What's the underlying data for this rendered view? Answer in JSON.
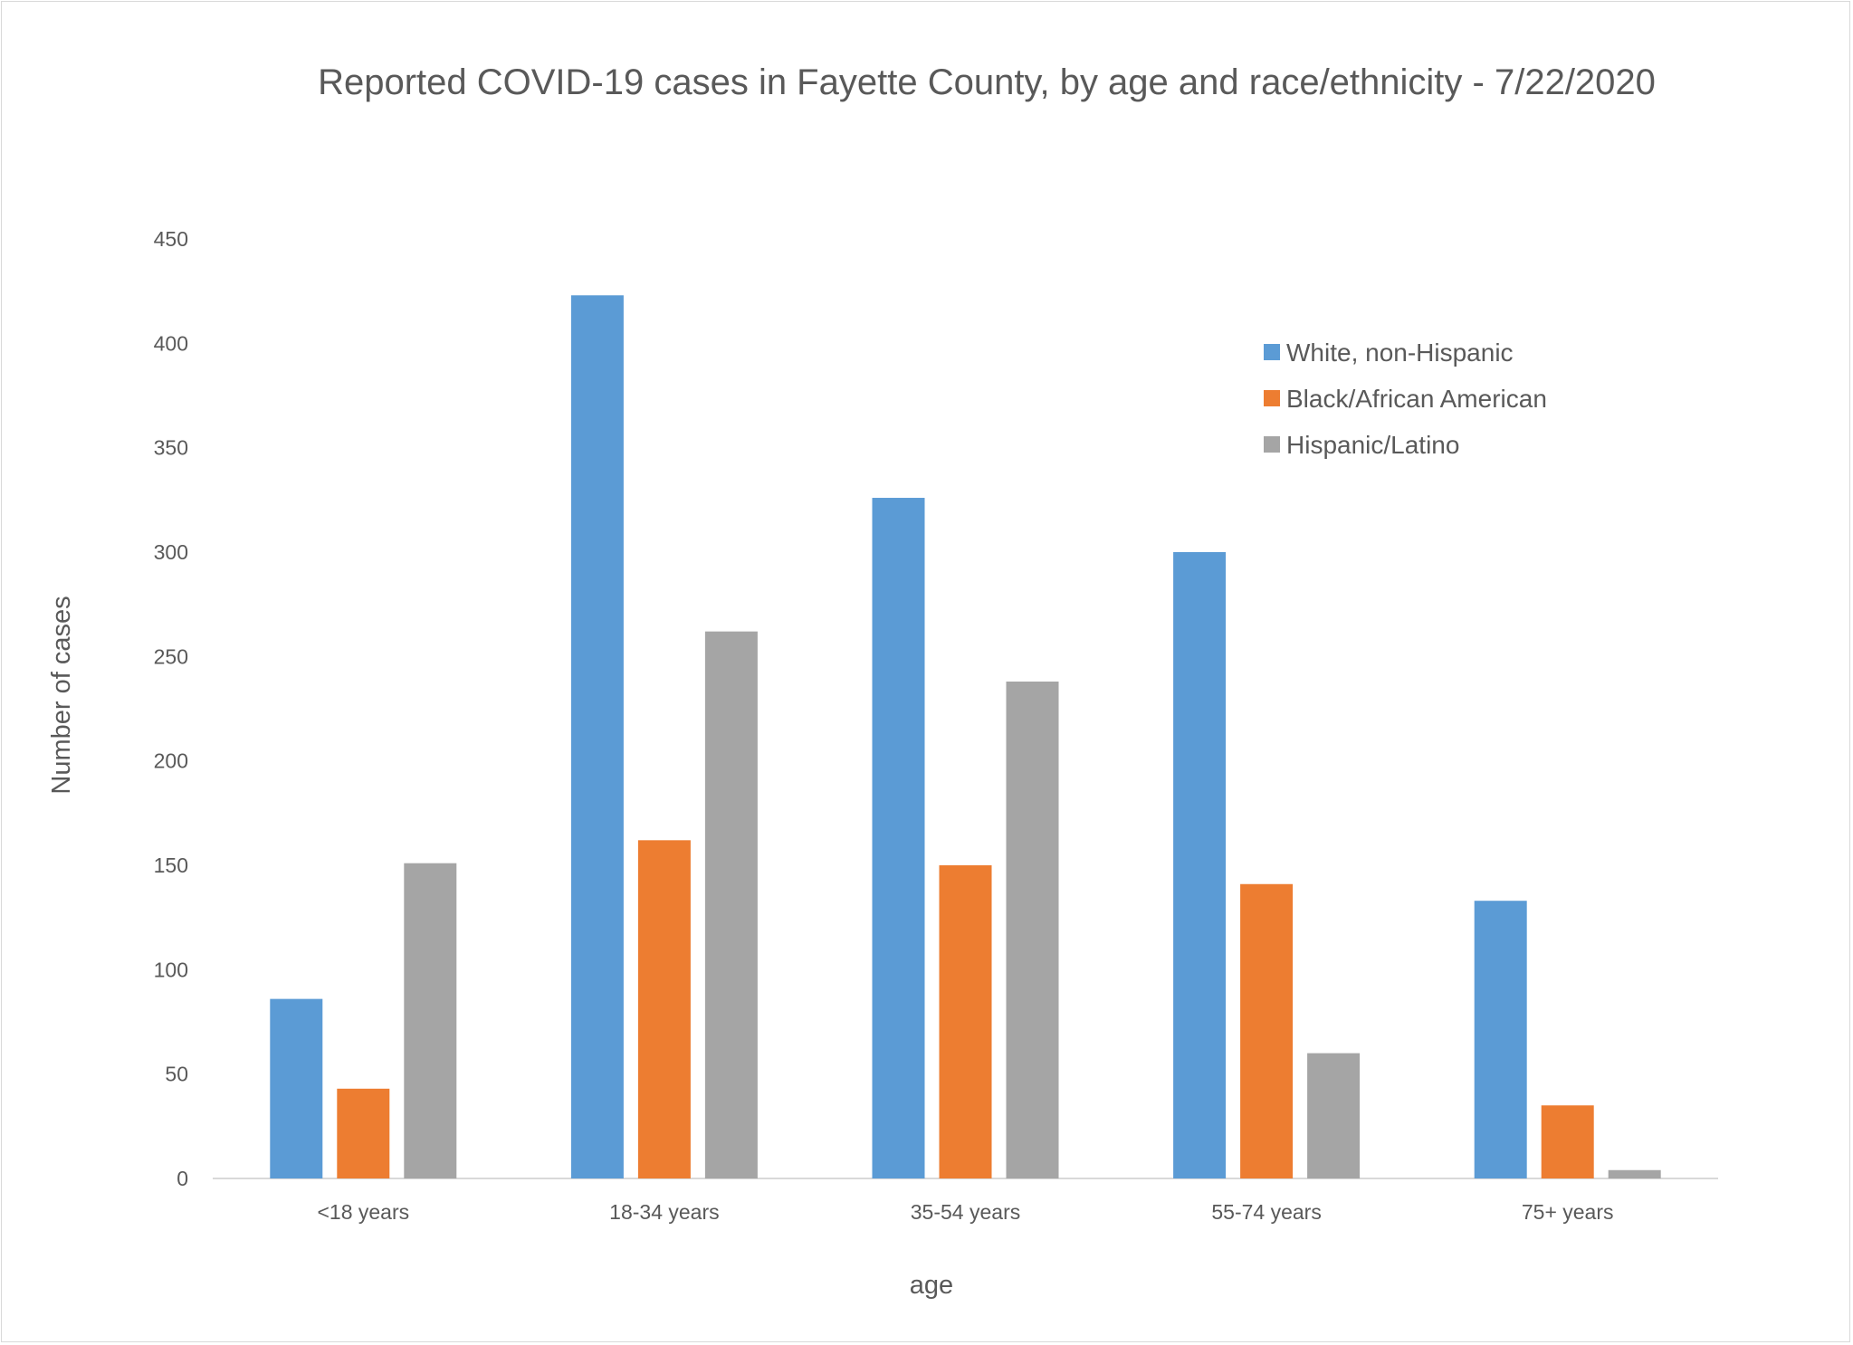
{
  "chart_data": {
    "type": "bar",
    "title": "Reported COVID-19 cases in Fayette County, by age and race/ethnicity - 7/22/2020",
    "xlabel": "age",
    "ylabel": "Number of cases",
    "categories": [
      "<18 years",
      "18-34 years",
      "35-54 years",
      "55-74 years",
      "75+ years"
    ],
    "ylim": [
      0,
      450
    ],
    "yticks": [
      "0",
      "50",
      "100",
      "150",
      "200",
      "250",
      "300",
      "350",
      "400",
      "450"
    ],
    "grid": false,
    "legend_position": "top-right",
    "series": [
      {
        "name": "White, non-Hispanic",
        "color": "#5b9bd5",
        "values": [
          86,
          423,
          326,
          300,
          133
        ]
      },
      {
        "name": "Black/African American",
        "color": "#ed7d31",
        "values": [
          43,
          162,
          150,
          141,
          35
        ]
      },
      {
        "name": "Hispanic/Latino",
        "color": "#a5a5a5",
        "values": [
          151,
          262,
          238,
          60,
          4
        ]
      }
    ]
  }
}
